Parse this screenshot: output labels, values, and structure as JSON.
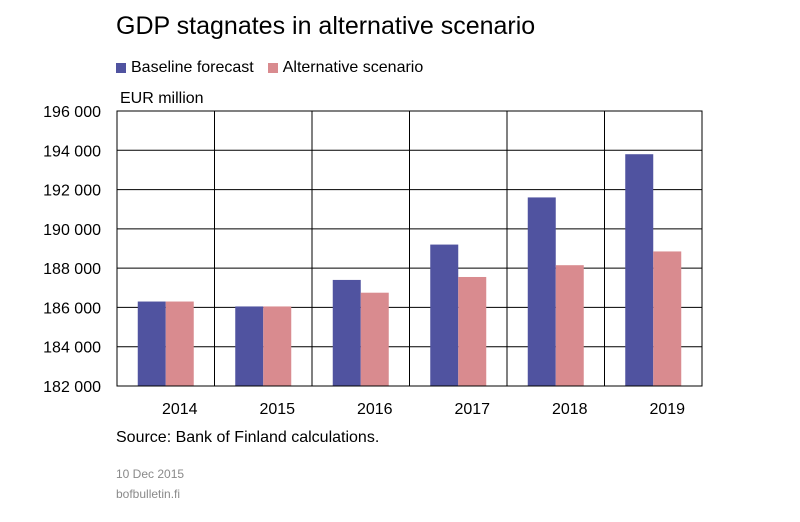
{
  "title": "GDP stagnates in alternative scenario",
  "source": "Source: Bank of Finland calculations.",
  "date": "10 Dec 2015",
  "site": "bofbulletin.fi",
  "colors": {
    "baseline": "#5053a0",
    "alternative": "#d98b8f"
  },
  "chart_data": {
    "type": "bar",
    "title": "GDP stagnates in alternative scenario",
    "ylabel": "EUR million",
    "xlabel": "",
    "categories": [
      "2014",
      "2015",
      "2016",
      "2017",
      "2018",
      "2019"
    ],
    "series": [
      {
        "name": "Baseline forecast",
        "values": [
          186300,
          186050,
          187400,
          189200,
          191600,
          193800
        ]
      },
      {
        "name": "Alternative scenario",
        "values": [
          186300,
          186050,
          186750,
          187550,
          188150,
          188850
        ]
      }
    ],
    "ylim": [
      182000,
      196000
    ],
    "yticks": [
      182000,
      184000,
      186000,
      188000,
      190000,
      192000,
      194000,
      196000
    ],
    "ytick_labels": [
      "182 000",
      "184 000",
      "186 000",
      "188 000",
      "190 000",
      "192 000",
      "194 000",
      "196 000"
    ],
    "grid": true,
    "legend": "top-left"
  }
}
